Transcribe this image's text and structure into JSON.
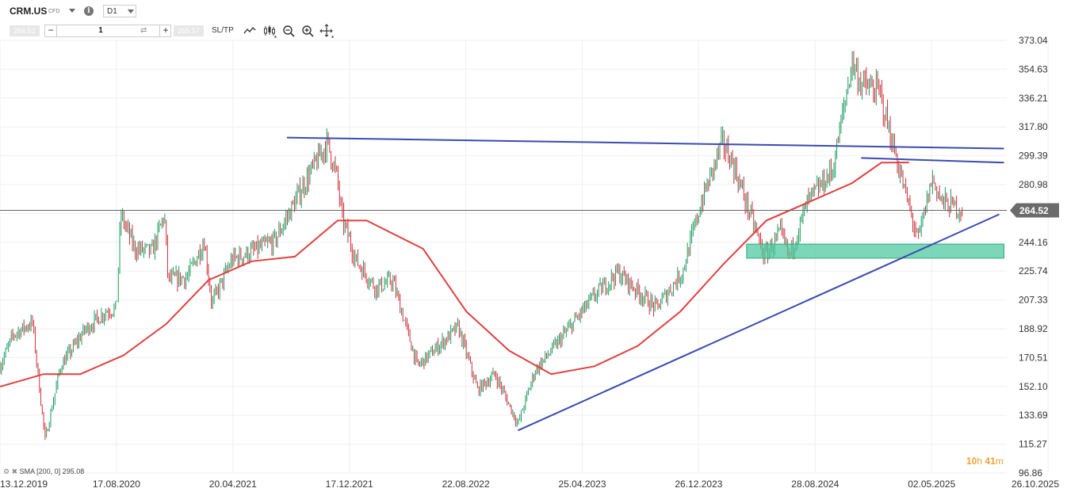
{
  "header": {
    "symbol": "CRM.US",
    "instrument_type": "CFD",
    "timeframe": "D1",
    "bid": "264.52",
    "quantity": "1",
    "ask": "265.57",
    "sl_tp": "SL/TP",
    "icons": [
      "line-chart-icon",
      "candle-chart-icon",
      "zoom-out-icon",
      "zoom-in-icon",
      "crosshair-icon"
    ]
  },
  "countdown": {
    "hours": "10",
    "h": "h",
    "minutes": "41",
    "m": "m"
  },
  "indicator_label": "SMA [200, 0] 295.08",
  "colors": {
    "up": "#1a9c60",
    "down": "#d12e3a",
    "sma": "#e04040",
    "trendline": "#3b4ab0",
    "zone": "#50c8a0",
    "current_price": "#666666"
  },
  "chart_data": {
    "type": "candlestick",
    "title": "",
    "xlabel": "",
    "ylabel": "",
    "x_ticks": [
      "13.12.2019",
      "17.08.2020",
      "20.04.2021",
      "17.12.2021",
      "22.08.2022",
      "25.04.2023",
      "26.12.2023",
      "28.08.2024",
      "02.05.2025",
      "26.10.2025"
    ],
    "y_ticks": [
      96.86,
      115.27,
      133.69,
      152.1,
      170.51,
      188.92,
      207.33,
      225.74,
      244.16,
      262.57,
      280.98,
      299.39,
      317.8,
      336.21,
      354.63,
      373.04
    ],
    "ylim": [
      96.86,
      373.04
    ],
    "xlim": [
      "2019-12-13",
      "2025-10-26"
    ],
    "current_price": 264.52,
    "current_price_label": "264.52",
    "grid": true,
    "price_path": [
      [
        "2019-12-13",
        165
      ],
      [
        "2020-01-10",
        185
      ],
      [
        "2020-02-20",
        193
      ],
      [
        "2020-03-18",
        118
      ],
      [
        "2020-04-20",
        165
      ],
      [
        "2020-06-10",
        188
      ],
      [
        "2020-07-25",
        200
      ],
      [
        "2020-08-17",
        202
      ],
      [
        "2020-08-26",
        262
      ],
      [
        "2020-09-25",
        240
      ],
      [
        "2020-11-01",
        238
      ],
      [
        "2020-11-27",
        262
      ],
      [
        "2020-12-05",
        220
      ],
      [
        "2021-01-15",
        222
      ],
      [
        "2021-02-20",
        245
      ],
      [
        "2021-03-08",
        205
      ],
      [
        "2021-04-20",
        233
      ],
      [
        "2021-06-01",
        238
      ],
      [
        "2021-07-20",
        245
      ],
      [
        "2021-09-20",
        281
      ],
      [
        "2021-11-09",
        308
      ],
      [
        "2021-11-30",
        285
      ],
      [
        "2021-12-10",
        260
      ],
      [
        "2022-01-10",
        232
      ],
      [
        "2022-02-20",
        215
      ],
      [
        "2022-03-28",
        220
      ],
      [
        "2022-05-20",
        165
      ],
      [
        "2022-08-15",
        190
      ],
      [
        "2022-09-25",
        150
      ],
      [
        "2022-11-01",
        160
      ],
      [
        "2022-12-20",
        128
      ],
      [
        "2023-01-25",
        162
      ],
      [
        "2023-03-01",
        175
      ],
      [
        "2023-06-01",
        210
      ],
      [
        "2023-07-20",
        225
      ],
      [
        "2023-10-10",
        202
      ],
      [
        "2023-12-05",
        225
      ],
      [
        "2024-01-15",
        270
      ],
      [
        "2024-02-28",
        308
      ],
      [
        "2024-03-20",
        296
      ],
      [
        "2024-05-28",
        235
      ],
      [
        "2024-07-01",
        250
      ],
      [
        "2024-07-20",
        235
      ],
      [
        "2024-08-28",
        270
      ],
      [
        "2024-10-20",
        290
      ],
      [
        "2024-12-01",
        360
      ],
      [
        "2024-12-20",
        345
      ],
      [
        "2025-01-28",
        340
      ],
      [
        "2025-03-20",
        280
      ],
      [
        "2025-04-20",
        245
      ],
      [
        "2025-05-20",
        285
      ],
      [
        "2025-06-10",
        270
      ],
      [
        "2025-07-25",
        264.52
      ]
    ],
    "sma": {
      "name": "SMA [200, 0]",
      "value": 295.08,
      "points": [
        [
          "2019-12-13",
          152
        ],
        [
          "2020-03-15",
          160
        ],
        [
          "2020-06-01",
          160
        ],
        [
          "2020-09-01",
          172
        ],
        [
          "2020-12-01",
          192
        ],
        [
          "2021-03-01",
          220
        ],
        [
          "2021-06-01",
          232
        ],
        [
          "2021-09-01",
          235
        ],
        [
          "2021-12-01",
          258
        ],
        [
          "2022-02-01",
          258
        ],
        [
          "2022-06-01",
          240
        ],
        [
          "2022-09-01",
          200
        ],
        [
          "2022-12-01",
          175
        ],
        [
          "2023-03-01",
          160
        ],
        [
          "2023-06-01",
          165
        ],
        [
          "2023-09-01",
          178
        ],
        [
          "2023-12-01",
          200
        ],
        [
          "2024-03-01",
          230
        ],
        [
          "2024-06-01",
          258
        ],
        [
          "2024-09-01",
          270
        ],
        [
          "2024-12-01",
          282
        ],
        [
          "2025-02-01",
          295
        ],
        [
          "2025-04-01",
          295.08
        ]
      ]
    },
    "trendlines": [
      {
        "start": [
          "2021-08-15",
          311
        ],
        "end": [
          "2025-10-20",
          304
        ]
      },
      {
        "start": [
          "2024-12-20",
          298
        ],
        "end": [
          "2025-10-20",
          295
        ]
      },
      {
        "start": [
          "2022-12-20",
          124
        ],
        "end": [
          "2025-10-10",
          262
        ]
      }
    ],
    "support_zone": {
      "start": "2024-04-20",
      "end": "2025-10-20",
      "low": 234,
      "high": 243
    }
  }
}
